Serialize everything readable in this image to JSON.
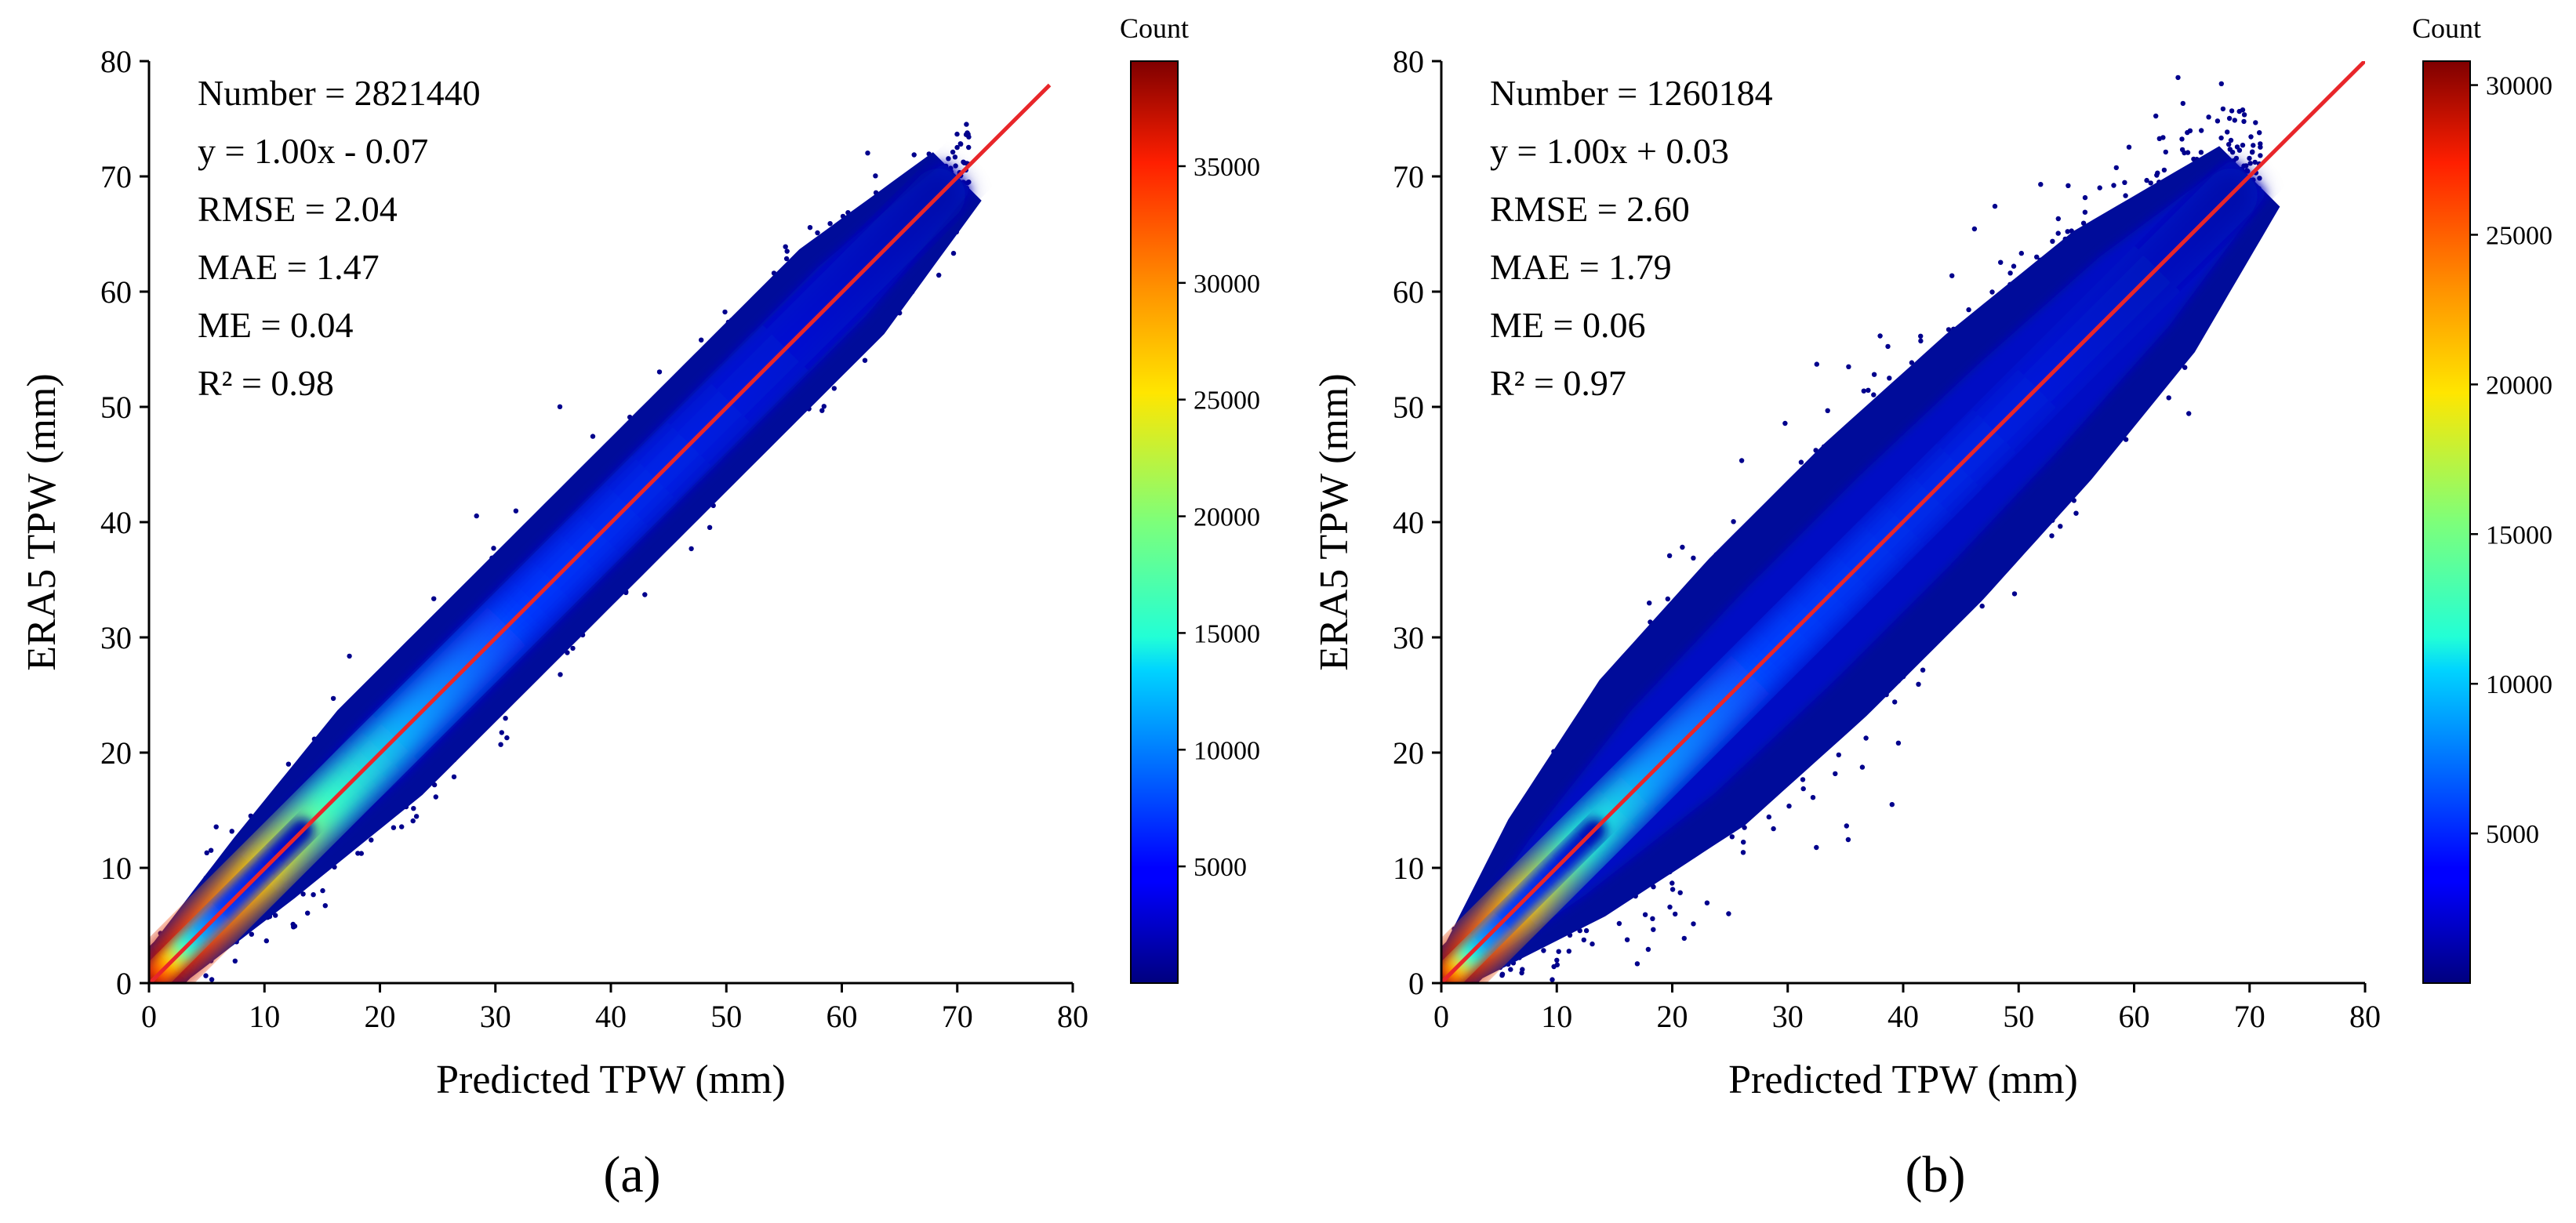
{
  "figure": {
    "panels": [
      "(a)",
      "(b)"
    ]
  },
  "chart_data": [
    {
      "type": "scatter",
      "subtype": "density-scatter",
      "panel_label": "a",
      "xlabel": "Predicted TPW (mm)",
      "ylabel": "ERA5 TPW (mm)",
      "xlim": [
        0,
        80
      ],
      "ylim": [
        0,
        80
      ],
      "x_ticks": [
        0,
        10,
        20,
        30,
        40,
        50,
        60,
        70,
        80
      ],
      "y_ticks": [
        0,
        10,
        20,
        30,
        40,
        50,
        60,
        70,
        80
      ],
      "stats": [
        "Number = 2821440",
        "y = 1.00x - 0.07",
        "RMSE = 2.04",
        "MAE = 1.47",
        "ME = 0.04",
        "R² = 0.98"
      ],
      "fit_line": {
        "slope": 1.0,
        "intercept": -0.07,
        "x_range": [
          0,
          78
        ],
        "color": "#e8262a"
      },
      "point_cloud": {
        "x_range": [
          0,
          70
        ],
        "half_width": [
          {
            "x": 2,
            "w": 3
          },
          {
            "x": 10,
            "w": 5
          },
          {
            "x": 20,
            "w": 7
          },
          {
            "x": 30,
            "w": 7
          },
          {
            "x": 40,
            "w": 7
          },
          {
            "x": 50,
            "w": 7
          },
          {
            "x": 60,
            "w": 7
          },
          {
            "x": 70,
            "w": 4
          }
        ],
        "density_peak_x": 5
      },
      "colorbar": {
        "label": "Count",
        "min": 0,
        "max": 39500,
        "ticks": [
          5000,
          10000,
          15000,
          20000,
          25000,
          30000,
          35000
        ],
        "colormap": "jet"
      }
    },
    {
      "type": "scatter",
      "subtype": "density-scatter",
      "panel_label": "b",
      "xlabel": "Predicted TPW (mm)",
      "ylabel": "ERA5 TPW (mm)",
      "xlim": [
        0,
        80
      ],
      "ylim": [
        0,
        80
      ],
      "x_ticks": [
        0,
        10,
        20,
        30,
        40,
        50,
        60,
        70,
        80
      ],
      "y_ticks": [
        0,
        10,
        20,
        30,
        40,
        50,
        60,
        70,
        80
      ],
      "stats": [
        "Number = 1260184",
        "y = 1.00x + 0.03",
        "RMSE = 2.60",
        "MAE = 1.79",
        "ME = 0.06",
        "R² = 0.97"
      ],
      "fit_line": {
        "slope": 1.0,
        "intercept": 0.03,
        "x_range": [
          0,
          80
        ],
        "color": "#e8262a"
      },
      "point_cloud": {
        "x_range": [
          0,
          70
        ],
        "half_width": [
          {
            "x": 2,
            "w": 3
          },
          {
            "x": 10,
            "w": 8
          },
          {
            "x": 20,
            "w": 12
          },
          {
            "x": 30,
            "w": 13
          },
          {
            "x": 40,
            "w": 13
          },
          {
            "x": 50,
            "w": 12
          },
          {
            "x": 60,
            "w": 10
          },
          {
            "x": 70,
            "w": 5
          }
        ],
        "density_peak_x": 3
      },
      "colorbar": {
        "label": "Count",
        "min": 0,
        "max": 30800,
        "ticks": [
          5000,
          10000,
          15000,
          20000,
          25000,
          30000
        ],
        "colormap": "jet"
      }
    }
  ]
}
